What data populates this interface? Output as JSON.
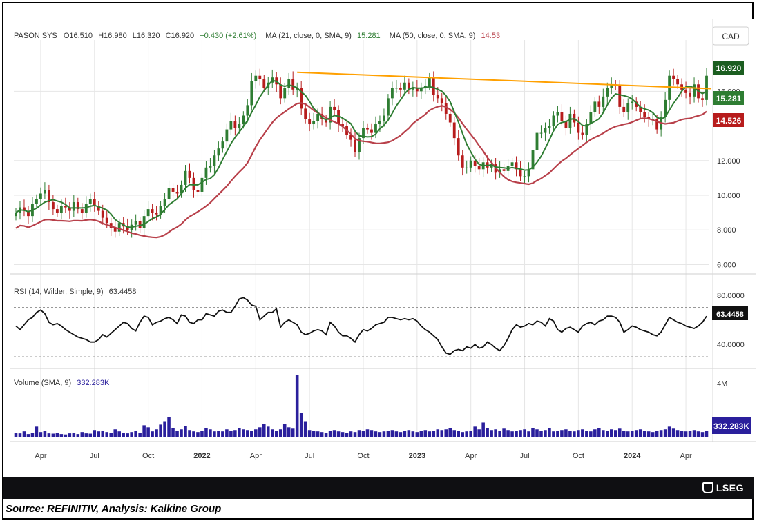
{
  "colors": {
    "up": "#2e7d32",
    "down": "#b71c1c",
    "ma21": "#2e7d32",
    "ma50": "#b8404a",
    "trendline": "#ffa000",
    "rsi": "#111111",
    "volume": "#2a1f9c",
    "grid": "#e6e6e6",
    "axis_text": "#333333"
  },
  "header": {
    "symbol": "PASON SYS",
    "open": "O16.510",
    "high": "H16.980",
    "low": "L16.320",
    "close": "C16.920",
    "change": "+0.430 (+2.61%)",
    "ma21_label": "MA (21, close, 0, SMA, 9)",
    "ma21_value": "15.281",
    "ma50_label": "MA (50, close, 0, SMA, 9)",
    "ma50_value": "14.53",
    "currency": "CAD"
  },
  "rsi_header": {
    "label": "RSI (14, Wilder, Simple, 9)",
    "value": "63.4458"
  },
  "volume_header": {
    "label": "Volume (SMA, 9)",
    "value": "332.283K"
  },
  "badges": {
    "price": "16.920",
    "ma21": "15.281",
    "ma50": "14.526",
    "rsi": "63.4458",
    "volume": "332.283K"
  },
  "footer": {
    "source": "Source: REFINITIV, Analysis: Kalkine Group",
    "brand": "LSEG"
  },
  "chart_data": {
    "type": "candlestick",
    "y_ticks": [
      "6.000",
      "8.000",
      "10.000",
      "12.000",
      "16.000"
    ],
    "y_tick_values": [
      6,
      8,
      10,
      12,
      16
    ],
    "price_range": [
      5.5,
      18.8
    ],
    "rsi_ticks": [
      "80.0000",
      "40.0000"
    ],
    "rsi_range": [
      25,
      90
    ],
    "rsi_levels": [
      70,
      30
    ],
    "volume_ticks": [
      "4M"
    ],
    "volume_range": [
      0,
      4.8
    ],
    "x_labels": [
      {
        "label": "Apr",
        "i": 6,
        "bold": false
      },
      {
        "label": "Jul",
        "i": 19,
        "bold": false
      },
      {
        "label": "Oct",
        "i": 32,
        "bold": false
      },
      {
        "label": "2022",
        "i": 45,
        "bold": true
      },
      {
        "label": "Apr",
        "i": 58,
        "bold": false
      },
      {
        "label": "Jul",
        "i": 71,
        "bold": false
      },
      {
        "label": "Oct",
        "i": 84,
        "bold": false
      },
      {
        "label": "2023",
        "i": 97,
        "bold": true
      },
      {
        "label": "Apr",
        "i": 110,
        "bold": false
      },
      {
        "label": "Jul",
        "i": 123,
        "bold": false
      },
      {
        "label": "Oct",
        "i": 136,
        "bold": false
      },
      {
        "label": "2024",
        "i": 149,
        "bold": true
      },
      {
        "label": "Apr",
        "i": 162,
        "bold": false
      }
    ],
    "trendline": {
      "from_i": 68,
      "from_price": 17.1,
      "to_i": 176,
      "to_price": 16.15
    },
    "close": [
      9.0,
      9.3,
      9.1,
      8.8,
      9.5,
      9.8,
      10.1,
      10.3,
      9.6,
      9.2,
      9.0,
      9.4,
      9.3,
      9.1,
      9.6,
      9.2,
      9.0,
      9.5,
      9.8,
      9.4,
      9.1,
      8.7,
      8.4,
      8.1,
      7.9,
      8.4,
      8.2,
      8.0,
      8.3,
      8.5,
      8.1,
      8.8,
      9.2,
      9.0,
      8.9,
      9.4,
      9.8,
      10.4,
      10.2,
      10.1,
      10.6,
      11.4,
      11.0,
      10.3,
      10.2,
      11.0,
      11.6,
      11.7,
      12.3,
      12.7,
      13.1,
      13.8,
      14.3,
      13.9,
      14.1,
      14.6,
      15.2,
      16.6,
      16.9,
      16.7,
      16.2,
      16.5,
      16.8,
      16.4,
      15.6,
      16.2,
      16.7,
      16.1,
      16.2,
      15.0,
      14.4,
      14.1,
      14.3,
      14.7,
      14.4,
      14.2,
      15.1,
      14.9,
      14.1,
      14.0,
      13.5,
      13.2,
      12.5,
      13.3,
      13.9,
      13.8,
      13.6,
      14.1,
      14.3,
      14.6,
      15.6,
      16.2,
      16.2,
      16.1,
      16.5,
      16.1,
      16.2,
      16.0,
      16.2,
      16.3,
      16.8,
      15.8,
      15.6,
      15.3,
      14.7,
      14.2,
      13.3,
      12.3,
      11.6,
      11.6,
      12.0,
      11.7,
      11.5,
      11.9,
      11.6,
      11.8,
      11.3,
      11.5,
      11.4,
      11.7,
      11.9,
      11.5,
      11.1,
      11.1,
      11.5,
      12.6,
      13.6,
      13.6,
      13.9,
      14.0,
      14.6,
      14.8,
      14.3,
      13.9,
      14.7,
      14.2,
      13.6,
      13.5,
      14.1,
      14.8,
      15.4,
      15.1,
      15.7,
      16.2,
      16.4,
      16.3,
      15.1,
      14.8,
      15.3,
      15.4,
      15.1,
      14.8,
      14.5,
      14.4,
      14.4,
      13.8,
      14.5,
      15.5,
      16.9,
      16.7,
      16.4,
      16.1,
      15.9,
      15.7,
      16.4,
      15.6,
      15.5,
      16.9
    ],
    "rsi": [
      55,
      52,
      56,
      60,
      62,
      66,
      68,
      65,
      58,
      56,
      57,
      55,
      52,
      50,
      48,
      46,
      45,
      44,
      42,
      42,
      44,
      48,
      46,
      49,
      52,
      55,
      58,
      57,
      53,
      51,
      58,
      63,
      62,
      56,
      58,
      59,
      61,
      62,
      60,
      57,
      64,
      63,
      58,
      57,
      60,
      60,
      65,
      64,
      63,
      67,
      68,
      66,
      66,
      71,
      77,
      78,
      76,
      72,
      71,
      60,
      63,
      66,
      66,
      69,
      54,
      58,
      60,
      58,
      56,
      50,
      48,
      49,
      51,
      52,
      51,
      48,
      58,
      55,
      50,
      47,
      47,
      45,
      42,
      48,
      52,
      51,
      53,
      56,
      57,
      58,
      62,
      62,
      61,
      60,
      61,
      60,
      61,
      59,
      55,
      52,
      50,
      47,
      44,
      38,
      33,
      32,
      35,
      36,
      35,
      38,
      37,
      40,
      37,
      38,
      42,
      40,
      37,
      35,
      39,
      45,
      52,
      56,
      54,
      55,
      57,
      56,
      59,
      58,
      55,
      61,
      59,
      52,
      50,
      53,
      54,
      52,
      50,
      55,
      57,
      58,
      56,
      59,
      60,
      63,
      63,
      62,
      58,
      50,
      52,
      55,
      54,
      52,
      51,
      50,
      48,
      47,
      50,
      56,
      62,
      60,
      58,
      57,
      55,
      54,
      53,
      55,
      58,
      63
    ],
    "volume": [
      0.35,
      0.3,
      0.45,
      0.25,
      0.32,
      0.8,
      0.4,
      0.48,
      0.3,
      0.28,
      0.33,
      0.25,
      0.22,
      0.3,
      0.35,
      0.25,
      0.4,
      0.3,
      0.28,
      0.55,
      0.45,
      0.5,
      0.4,
      0.35,
      0.6,
      0.45,
      0.32,
      0.3,
      0.4,
      0.5,
      0.35,
      0.9,
      0.75,
      0.45,
      0.6,
      0.95,
      1.2,
      1.5,
      0.7,
      0.5,
      0.6,
      0.85,
      0.55,
      0.45,
      0.4,
      0.5,
      0.7,
      0.6,
      0.45,
      0.5,
      0.45,
      0.6,
      0.5,
      0.55,
      0.7,
      0.6,
      0.55,
      0.5,
      0.6,
      0.75,
      1.0,
      0.8,
      0.6,
      0.5,
      0.6,
      1.0,
      0.75,
      0.65,
      4.6,
      1.8,
      1.2,
      0.55,
      0.5,
      0.45,
      0.4,
      0.35,
      0.5,
      0.55,
      0.45,
      0.4,
      0.35,
      0.45,
      0.4,
      0.55,
      0.5,
      0.6,
      0.55,
      0.45,
      0.4,
      0.45,
      0.5,
      0.55,
      0.45,
      0.4,
      0.5,
      0.55,
      0.45,
      0.4,
      0.5,
      0.55,
      0.45,
      0.5,
      0.6,
      0.55,
      0.6,
      0.7,
      0.55,
      0.5,
      0.4,
      0.45,
      0.5,
      0.8,
      0.6,
      1.1,
      0.7,
      0.55,
      0.6,
      0.5,
      0.65,
      0.55,
      0.45,
      0.5,
      0.55,
      0.6,
      0.45,
      0.7,
      0.6,
      0.5,
      0.55,
      0.7,
      0.45,
      0.5,
      0.55,
      0.6,
      0.5,
      0.45,
      0.55,
      0.6,
      0.5,
      0.45,
      0.6,
      0.7,
      0.55,
      0.5,
      0.6,
      0.55,
      0.65,
      0.5,
      0.45,
      0.5,
      0.55,
      0.6,
      0.5,
      0.45,
      0.4,
      0.5,
      0.55,
      0.6,
      0.8,
      0.65,
      0.55,
      0.5,
      0.45,
      0.5,
      0.55,
      0.45,
      0.4,
      0.5
    ]
  }
}
